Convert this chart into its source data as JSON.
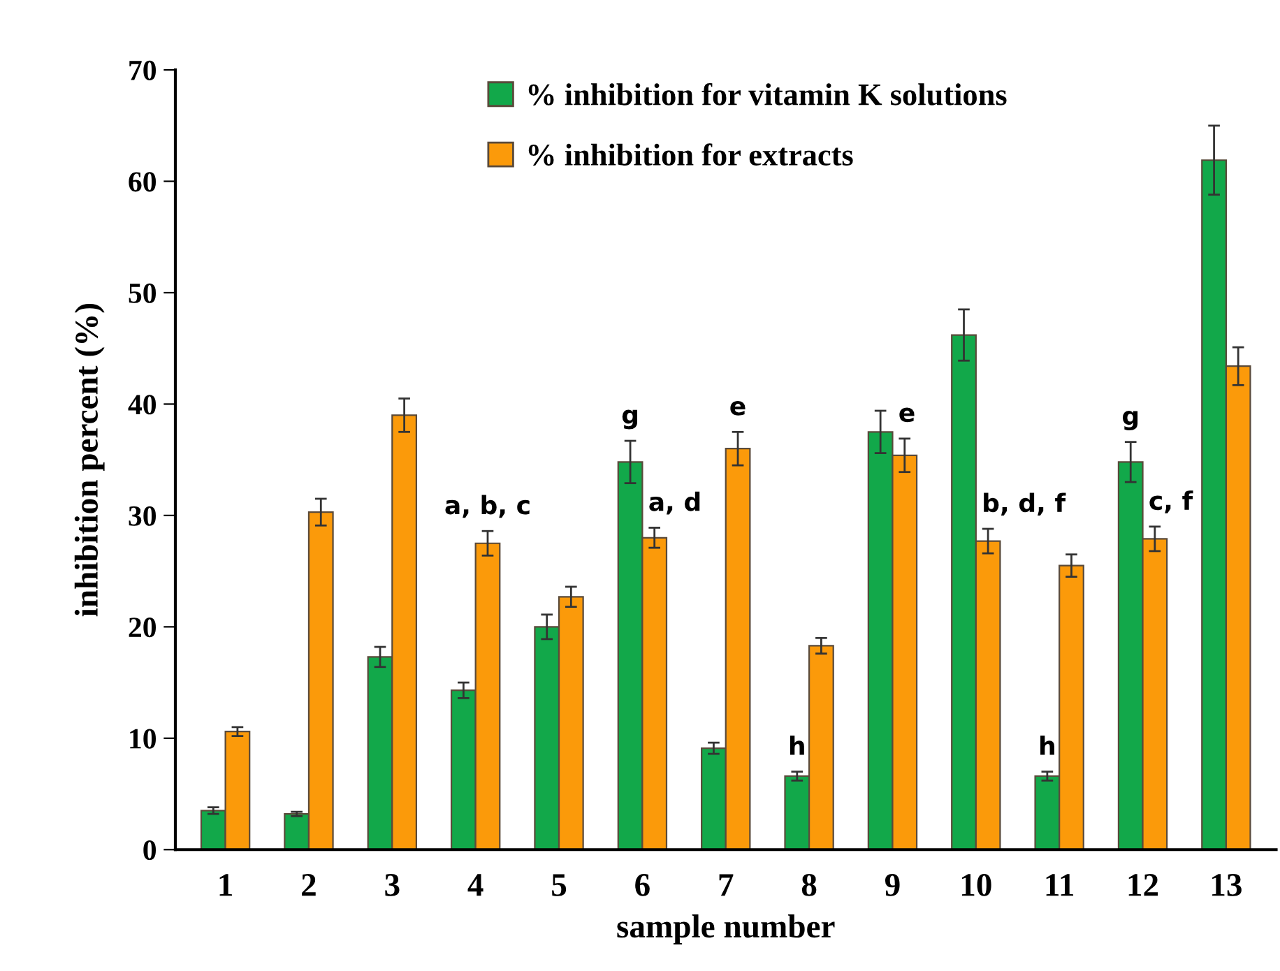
{
  "chart_data": {
    "type": "bar",
    "xlabel": "sample number",
    "ylabel": "inhibition percent (%)",
    "categories": [
      "1",
      "2",
      "3",
      "4",
      "5",
      "6",
      "7",
      "8",
      "9",
      "10",
      "11",
      "12",
      "13"
    ],
    "series": [
      {
        "name": "% inhibition for vitamin K solutions",
        "color": "#12a84a",
        "values": [
          3.5,
          3.2,
          17.3,
          14.3,
          20,
          34.8,
          9.1,
          6.6,
          37.5,
          46.2,
          6.6,
          34.8,
          61.9
        ],
        "errors": [
          0.3,
          0.2,
          0.9,
          0.7,
          1.1,
          1.9,
          0.5,
          0.4,
          1.9,
          2.3,
          0.4,
          1.8,
          3.1
        ]
      },
      {
        "name": "% inhibition for extracts",
        "color": "#fb9a0a",
        "values": [
          10.6,
          30.3,
          39,
          27.5,
          22.7,
          28,
          36,
          18.3,
          35.4,
          27.7,
          25.5,
          27.9,
          43.4
        ],
        "errors": [
          0.4,
          1.2,
          1.5,
          1.1,
          0.9,
          0.9,
          1.5,
          0.7,
          1.5,
          1.1,
          1.0,
          1.1,
          1.7
        ]
      }
    ],
    "ylim": [
      0,
      70
    ],
    "yticks": [
      0,
      10,
      20,
      30,
      40,
      50,
      60,
      70
    ],
    "annotations": [
      {
        "text": "a, b, c",
        "x": "4",
        "y": 27.5
      },
      {
        "text": "g",
        "x": "6",
        "y": 34.8
      },
      {
        "text": "a, d",
        "x": "6",
        "y": 28
      },
      {
        "text": "e",
        "x": "7",
        "y": 36
      },
      {
        "text": "h",
        "x": "8",
        "y": 6.6
      },
      {
        "text": "e",
        "x": "9",
        "y": 35.4
      },
      {
        "text": "b, d, f",
        "x": "10",
        "y": 27.7
      },
      {
        "text": "h",
        "x": "11",
        "y": 6.6
      },
      {
        "text": "g",
        "x": "12",
        "y": 34.8
      },
      {
        "text": "c, f",
        "x": "12",
        "y": 27.9
      }
    ],
    "legend": "top",
    "grid": false
  }
}
